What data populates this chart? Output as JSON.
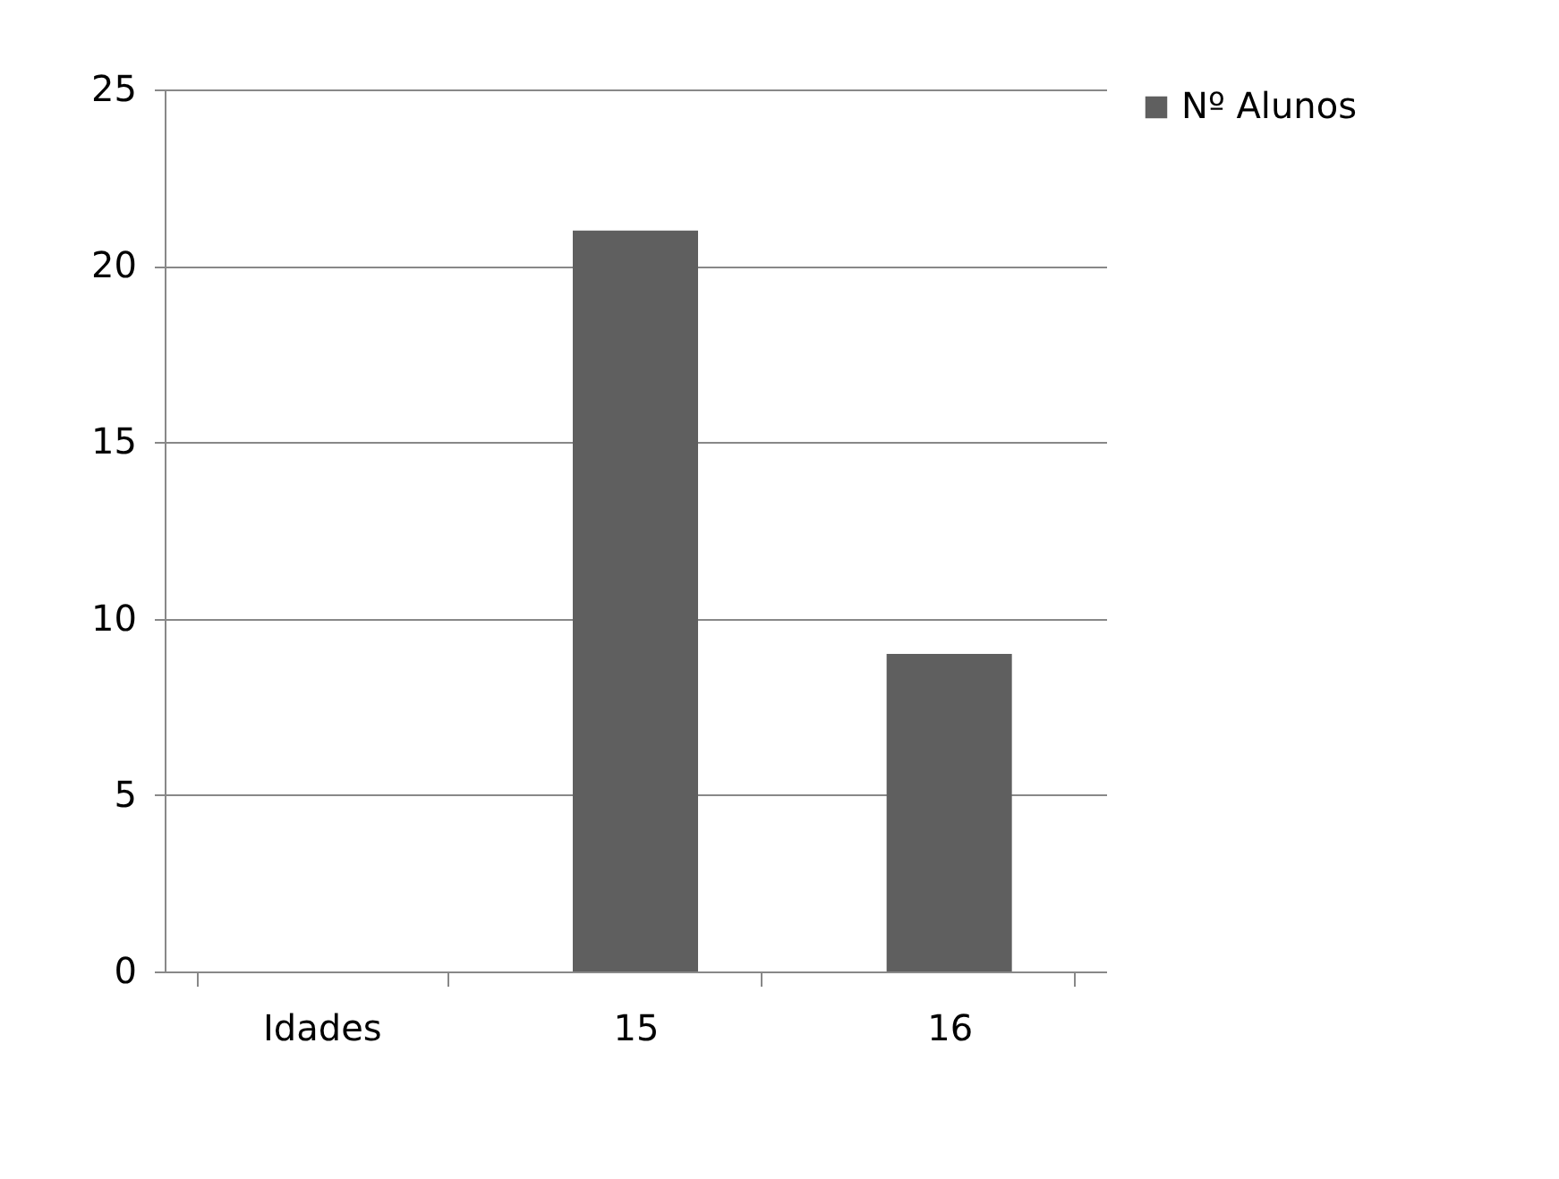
{
  "chart_data": {
    "type": "bar",
    "categories": [
      "Idades",
      "15",
      "16"
    ],
    "series": [
      {
        "name": "Nº Alunos",
        "color": "#5f5f5f",
        "values": [
          null,
          21,
          9
        ]
      }
    ],
    "ylim": [
      0,
      25
    ],
    "yticks": [
      0,
      5,
      10,
      15,
      20,
      25
    ],
    "grid": "y",
    "legend": "right"
  }
}
